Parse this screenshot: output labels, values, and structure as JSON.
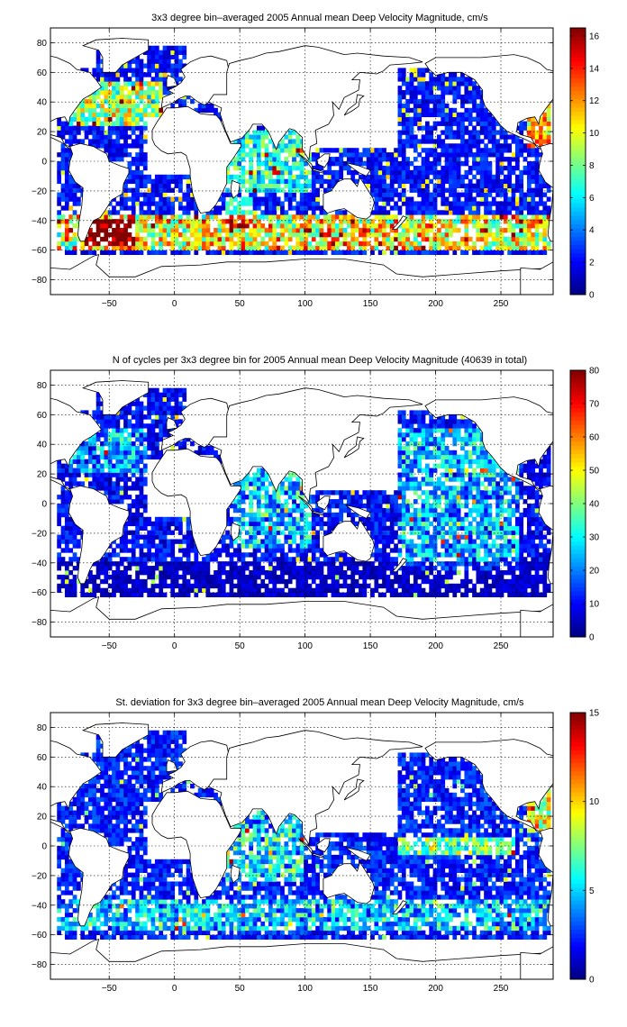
{
  "chart_data": [
    {
      "type": "heatmap",
      "title": "3x3 degree bin–averaged 2005 Annual mean Deep Velocity Magnitude, cm/s",
      "xlim": [
        -95,
        290
      ],
      "ylim": [
        -90,
        90
      ],
      "xticks": [
        -50,
        0,
        50,
        100,
        150,
        200,
        250
      ],
      "yticks": [
        -80,
        -60,
        -40,
        -20,
        0,
        20,
        40,
        60,
        80
      ],
      "grid": true,
      "colorbar": {
        "range": [
          0,
          16.5
        ],
        "ticks": [
          0,
          2,
          4,
          6,
          8,
          10,
          12,
          14,
          16
        ],
        "colormap": "jet"
      },
      "bin_size_deg": 3,
      "field": "annual mean deep velocity magnitude (binned)"
    },
    {
      "type": "heatmap",
      "title": "N of cycles per 3x3 degree bin for 2005 Annual mean Deep Velocity Magnitude (40639 in total)",
      "xlim": [
        -95,
        290
      ],
      "ylim": [
        -90,
        90
      ],
      "xticks": [
        -50,
        0,
        50,
        100,
        150,
        200,
        250
      ],
      "yticks": [
        -80,
        -60,
        -40,
        -20,
        0,
        20,
        40,
        60,
        80
      ],
      "grid": true,
      "colorbar": {
        "range": [
          0,
          80
        ],
        "ticks": [
          0,
          10,
          20,
          30,
          40,
          50,
          60,
          70,
          80
        ],
        "colormap": "jet"
      },
      "bin_size_deg": 3,
      "field": "number of cycles per bin"
    },
    {
      "type": "heatmap",
      "title": "St. deviation for 3x3 degree bin–averaged 2005 Annual mean Deep Velocity Magnitude, cm/s",
      "xlim": [
        -95,
        290
      ],
      "ylim": [
        -90,
        90
      ],
      "xticks": [
        -50,
        0,
        50,
        100,
        150,
        200,
        250
      ],
      "yticks": [
        -80,
        -60,
        -40,
        -20,
        0,
        20,
        40,
        60,
        80
      ],
      "grid": true,
      "colorbar": {
        "range": [
          0,
          15
        ],
        "ticks": [
          0,
          5,
          10,
          15
        ],
        "colormap": "jet"
      },
      "bin_size_deg": 3,
      "field": "standard deviation of velocity magnitude"
    }
  ]
}
